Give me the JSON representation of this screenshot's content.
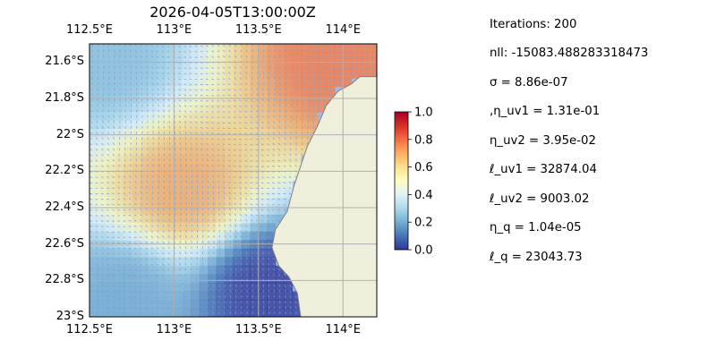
{
  "chart_data": {
    "type": "heatmap",
    "title": "2026-04-05T13:00:00Z",
    "xlim": [
      112.5,
      114.2
    ],
    "ylim": [
      -23.0,
      -21.5
    ],
    "x_ticks": [
      {
        "value": 112.5,
        "label": "112.5°E"
      },
      {
        "value": 113.0,
        "label": "113°E"
      },
      {
        "value": 113.5,
        "label": "113.5°E"
      },
      {
        "value": 114.0,
        "label": "114°E"
      }
    ],
    "y_ticks": [
      {
        "value": -21.6,
        "label": "21.6°S"
      },
      {
        "value": -21.8,
        "label": "21.8°S"
      },
      {
        "value": -22.0,
        "label": "22°S"
      },
      {
        "value": -22.2,
        "label": "22.2°S"
      },
      {
        "value": -22.4,
        "label": "22.4°S"
      },
      {
        "value": -22.6,
        "label": "22.6°S"
      },
      {
        "value": -22.8,
        "label": "22.8°S"
      },
      {
        "value": -23.0,
        "label": "23°S"
      }
    ],
    "grid": true,
    "colorbar": {
      "range": [
        0.0,
        1.0
      ],
      "ticks": [
        {
          "value": 0.0,
          "label": "0.0"
        },
        {
          "value": 0.2,
          "label": "0.2"
        },
        {
          "value": 0.4,
          "label": "0.4"
        },
        {
          "value": 0.6,
          "label": "0.6"
        },
        {
          "value": 0.8,
          "label": "0.8"
        },
        {
          "value": 1.0,
          "label": "1.0"
        }
      ],
      "colormap": "RdYlBu_r"
    },
    "land_outline": [
      [
        114.2,
        -21.68
      ],
      [
        114.1,
        -21.68
      ],
      [
        114.05,
        -21.72
      ],
      [
        113.97,
        -21.76
      ],
      [
        113.9,
        -21.84
      ],
      [
        113.85,
        -21.95
      ],
      [
        113.79,
        -22.06
      ],
      [
        113.75,
        -22.17
      ],
      [
        113.71,
        -22.28
      ],
      [
        113.67,
        -22.42
      ],
      [
        113.6,
        -22.52
      ],
      [
        113.58,
        -22.62
      ],
      [
        113.62,
        -22.72
      ],
      [
        113.68,
        -22.78
      ],
      [
        113.73,
        -22.87
      ],
      [
        113.75,
        -23.0
      ],
      [
        114.2,
        -23.0
      ]
    ],
    "field_gradient": [
      {
        "x": 113.95,
        "y": -21.6,
        "value": 0.78
      },
      {
        "x": 113.05,
        "y": -22.3,
        "value": 0.7
      },
      {
        "x": 112.6,
        "y": -21.6,
        "value": 0.25
      },
      {
        "x": 112.7,
        "y": -22.9,
        "value": 0.2
      },
      {
        "x": 113.55,
        "y": -22.85,
        "value": 0.0
      }
    ]
  },
  "params": {
    "iterations": "Iterations: 200",
    "nll": "nll: -15083.488283318473",
    "sigma": "σ = 8.86e-07",
    "eta_uv1": ",η_uv1 = 1.31e-01",
    "eta_uv2": "η_uv2 = 3.95e-02",
    "l_uv1": "ℓ_uv1 = 32874.04",
    "l_uv2": "ℓ_uv2 = 9003.02",
    "eta_q": "η_q = 1.04e-05",
    "l_q": "ℓ_q = 23043.73"
  },
  "colors": {
    "ocean": "#9fbfe6",
    "land": "#efefdc",
    "coast": "#7f7f7f",
    "grid": "#b0b0b0",
    "arrow": "#7f9bd0"
  }
}
